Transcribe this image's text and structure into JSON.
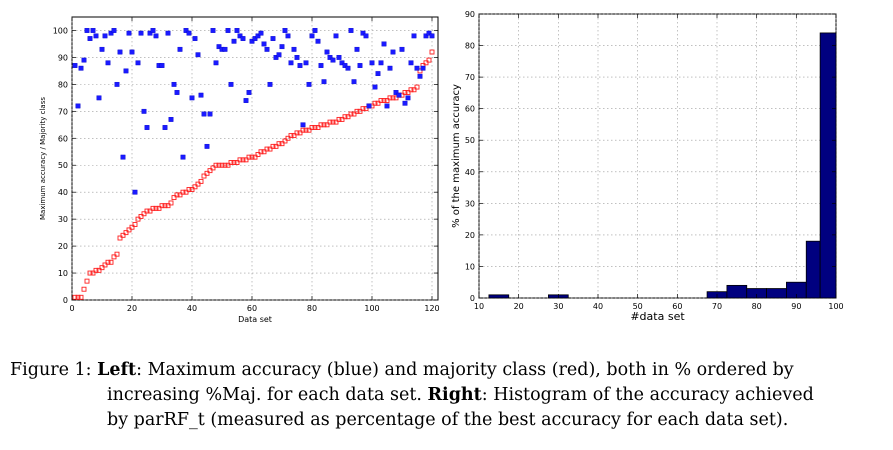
{
  "chart_data": [
    {
      "type": "scatter",
      "title": "",
      "xlabel": "Data set",
      "ylabel": "Maximum accuracy / Majority class",
      "xlim": [
        0,
        122
      ],
      "ylim": [
        0,
        105
      ],
      "xticks": [
        0,
        20,
        40,
        60,
        80,
        100,
        120
      ],
      "yticks": [
        0,
        10,
        20,
        30,
        40,
        50,
        60,
        70,
        80,
        90,
        100
      ],
      "grid": true,
      "series": [
        {
          "color": "#1a1aff",
          "marker": "filled-square",
          "x": [
            1,
            2,
            3,
            4,
            5,
            6,
            7,
            8,
            9,
            10,
            11,
            12,
            13,
            14,
            15,
            16,
            17,
            18,
            19,
            20,
            21,
            22,
            23,
            24,
            25,
            26,
            27,
            28,
            29,
            30,
            31,
            32,
            33,
            34,
            35,
            36,
            37,
            38,
            39,
            40,
            41,
            42,
            43,
            44,
            45,
            46,
            47,
            48,
            49,
            50,
            51,
            52,
            53,
            54,
            55,
            56,
            57,
            58,
            59,
            60,
            61,
            62,
            63,
            64,
            65,
            66,
            67,
            68,
            69,
            70,
            71,
            72,
            73,
            74,
            75,
            76,
            77,
            78,
            79,
            80,
            81,
            82,
            83,
            84,
            85,
            86,
            87,
            88,
            89,
            90,
            91,
            92,
            93,
            94,
            95,
            96,
            97,
            98,
            99,
            100,
            101,
            102,
            103,
            104,
            105,
            106,
            107,
            108,
            109,
            110,
            111,
            112,
            113,
            114,
            115,
            116,
            117,
            118,
            119,
            120
          ],
          "y": [
            87,
            72,
            86,
            89,
            100,
            97,
            100,
            98,
            75,
            93,
            98,
            88,
            99,
            100,
            80,
            92,
            53,
            85,
            99,
            92,
            40,
            88,
            99,
            70,
            64,
            99,
            100,
            98,
            87,
            87,
            64,
            99,
            67,
            80,
            77,
            93,
            53,
            100,
            99,
            75,
            97,
            91,
            76,
            69,
            57,
            69,
            100,
            88,
            94,
            93,
            93,
            100,
            80,
            96,
            100,
            98,
            97,
            74,
            77,
            96,
            97,
            98,
            99,
            95,
            93,
            80,
            97,
            90,
            91,
            94,
            100,
            98,
            88,
            93,
            90,
            87,
            65,
            88,
            80,
            98,
            100,
            96,
            87,
            81,
            92,
            90,
            89,
            98,
            90,
            88,
            87,
            86,
            100,
            81,
            93,
            87,
            99,
            98,
            72,
            88,
            79,
            84,
            88,
            95,
            72,
            86,
            92,
            77,
            76,
            93,
            73,
            75,
            88,
            98,
            86,
            83,
            86,
            98,
            99,
            98
          ]
        },
        {
          "color": "#ff2020",
          "marker": "hollow-square",
          "x": [
            1,
            2,
            3,
            4,
            5,
            6,
            7,
            8,
            9,
            10,
            11,
            12,
            13,
            14,
            15,
            16,
            17,
            18,
            19,
            20,
            21,
            22,
            23,
            24,
            25,
            26,
            27,
            28,
            29,
            30,
            31,
            32,
            33,
            34,
            35,
            36,
            37,
            38,
            39,
            40,
            41,
            42,
            43,
            44,
            45,
            46,
            47,
            48,
            49,
            50,
            51,
            52,
            53,
            54,
            55,
            56,
            57,
            58,
            59,
            60,
            61,
            62,
            63,
            64,
            65,
            66,
            67,
            68,
            69,
            70,
            71,
            72,
            73,
            74,
            75,
            76,
            77,
            78,
            79,
            80,
            81,
            82,
            83,
            84,
            85,
            86,
            87,
            88,
            89,
            90,
            91,
            92,
            93,
            94,
            95,
            96,
            97,
            98,
            99,
            100,
            101,
            102,
            103,
            104,
            105,
            106,
            107,
            108,
            109,
            110,
            111,
            112,
            113,
            114,
            115,
            116,
            117,
            118,
            119,
            120
          ],
          "y": [
            1,
            1,
            1,
            4,
            7,
            10,
            10,
            11,
            11,
            12,
            13,
            14,
            14,
            16,
            17,
            23,
            24,
            25,
            26,
            27,
            28,
            30,
            31,
            32,
            33,
            33,
            34,
            34,
            34,
            35,
            35,
            35,
            36,
            38,
            39,
            39,
            40,
            40,
            41,
            41,
            42,
            43,
            44,
            46,
            47,
            48,
            49,
            50,
            50,
            50,
            50,
            50,
            51,
            51,
            51,
            52,
            52,
            52,
            53,
            53,
            53,
            54,
            55,
            55,
            56,
            56,
            57,
            57,
            58,
            58,
            59,
            60,
            61,
            61,
            62,
            62,
            63,
            63,
            63,
            64,
            64,
            64,
            65,
            65,
            65,
            66,
            66,
            66,
            67,
            67,
            68,
            68,
            69,
            69,
            70,
            70,
            71,
            71,
            72,
            72,
            73,
            73,
            74,
            74,
            74,
            75,
            75,
            75,
            76,
            76,
            77,
            77,
            78,
            78,
            79,
            85,
            87,
            88,
            89,
            92
          ]
        }
      ]
    },
    {
      "type": "bar",
      "title": "",
      "xlabel": "#data set",
      "ylabel": "% of the maximum accuracy",
      "xlim": [
        10,
        100
      ],
      "ylim": [
        0,
        90
      ],
      "xticks": [
        10,
        20,
        30,
        40,
        50,
        60,
        70,
        80,
        90,
        100
      ],
      "yticks": [
        0,
        10,
        20,
        30,
        40,
        50,
        60,
        70,
        80,
        90
      ],
      "grid": true,
      "bar_color": "#000080",
      "bins": [
        [
          12.5,
          17.5
        ],
        [
          17.5,
          22.5
        ],
        [
          22.5,
          27.5
        ],
        [
          27.5,
          32.5
        ],
        [
          32.5,
          37.5
        ],
        [
          37.5,
          42.5
        ],
        [
          42.5,
          47.5
        ],
        [
          47.5,
          52.5
        ],
        [
          52.5,
          57.5
        ],
        [
          57.5,
          62.5
        ],
        [
          62.5,
          67.5
        ],
        [
          67.5,
          72.5
        ],
        [
          72.5,
          77.5
        ],
        [
          77.5,
          82.5
        ],
        [
          82.5,
          87.5
        ],
        [
          87.5,
          92.5
        ],
        [
          92.5,
          96
        ],
        [
          96,
          100
        ]
      ],
      "values": [
        1,
        0,
        0,
        1,
        0,
        0,
        0,
        0,
        0,
        0,
        0,
        2,
        4,
        3,
        3,
        5,
        18,
        84
      ]
    }
  ],
  "caption": {
    "line1": {
      "prefix": "Figure 1: ",
      "bold1": "Left",
      "text1": ": Maximum accuracy (blue) and majority class (red), both in % ordered by"
    },
    "line2": {
      "text1": "increasing %Maj. for each data set. ",
      "bold1": "Right",
      "text2": ": Histogram of the accuracy achieved"
    },
    "line3": {
      "text1": "by parRF_t (measured as percentage of the best accuracy for each data set)."
    }
  }
}
